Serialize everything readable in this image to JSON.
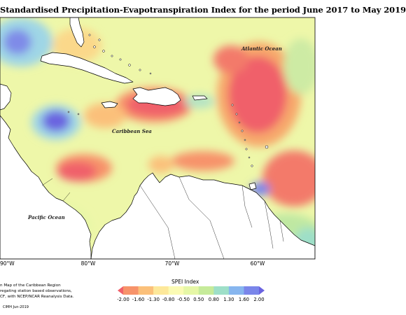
{
  "title": "Standardised Precipitation-Evapotranspiration Index for the period June 2017 to May 2019",
  "map_labels": {
    "atlantic": "Atlantic Ocean",
    "caribbean": "Caribbean Sea",
    "pacific": "Pacific Ocean"
  },
  "longitude_labels": [
    "90°W",
    "80°W",
    "70°W",
    "60°W"
  ],
  "footnote_lines": [
    "n Map of the Caribbean Region",
    "regating station based observations,",
    "CF, with NCEP/NCAR Reanalysis Data."
  ],
  "credit": "CIMH  Jun-2019",
  "legend": {
    "title": "SPEI Index",
    "breaks": [
      "-2.00",
      "-1.60",
      "-1.30",
      "-0.80",
      "-0.50",
      "0.50",
      "0.80",
      "1.30",
      "1.60",
      "2.00"
    ],
    "colors": [
      "#f0606a",
      "#f7936a",
      "#fbc07a",
      "#fde89a",
      "#fbfbb4",
      "#e6f7a6",
      "#c6eb9a",
      "#9edfc8",
      "#87b6ef",
      "#7a86ea",
      "#6a63e0"
    ]
  },
  "colors": {
    "land": "#ffffff",
    "coast": "#000000",
    "background_field": "#eef7a9"
  }
}
